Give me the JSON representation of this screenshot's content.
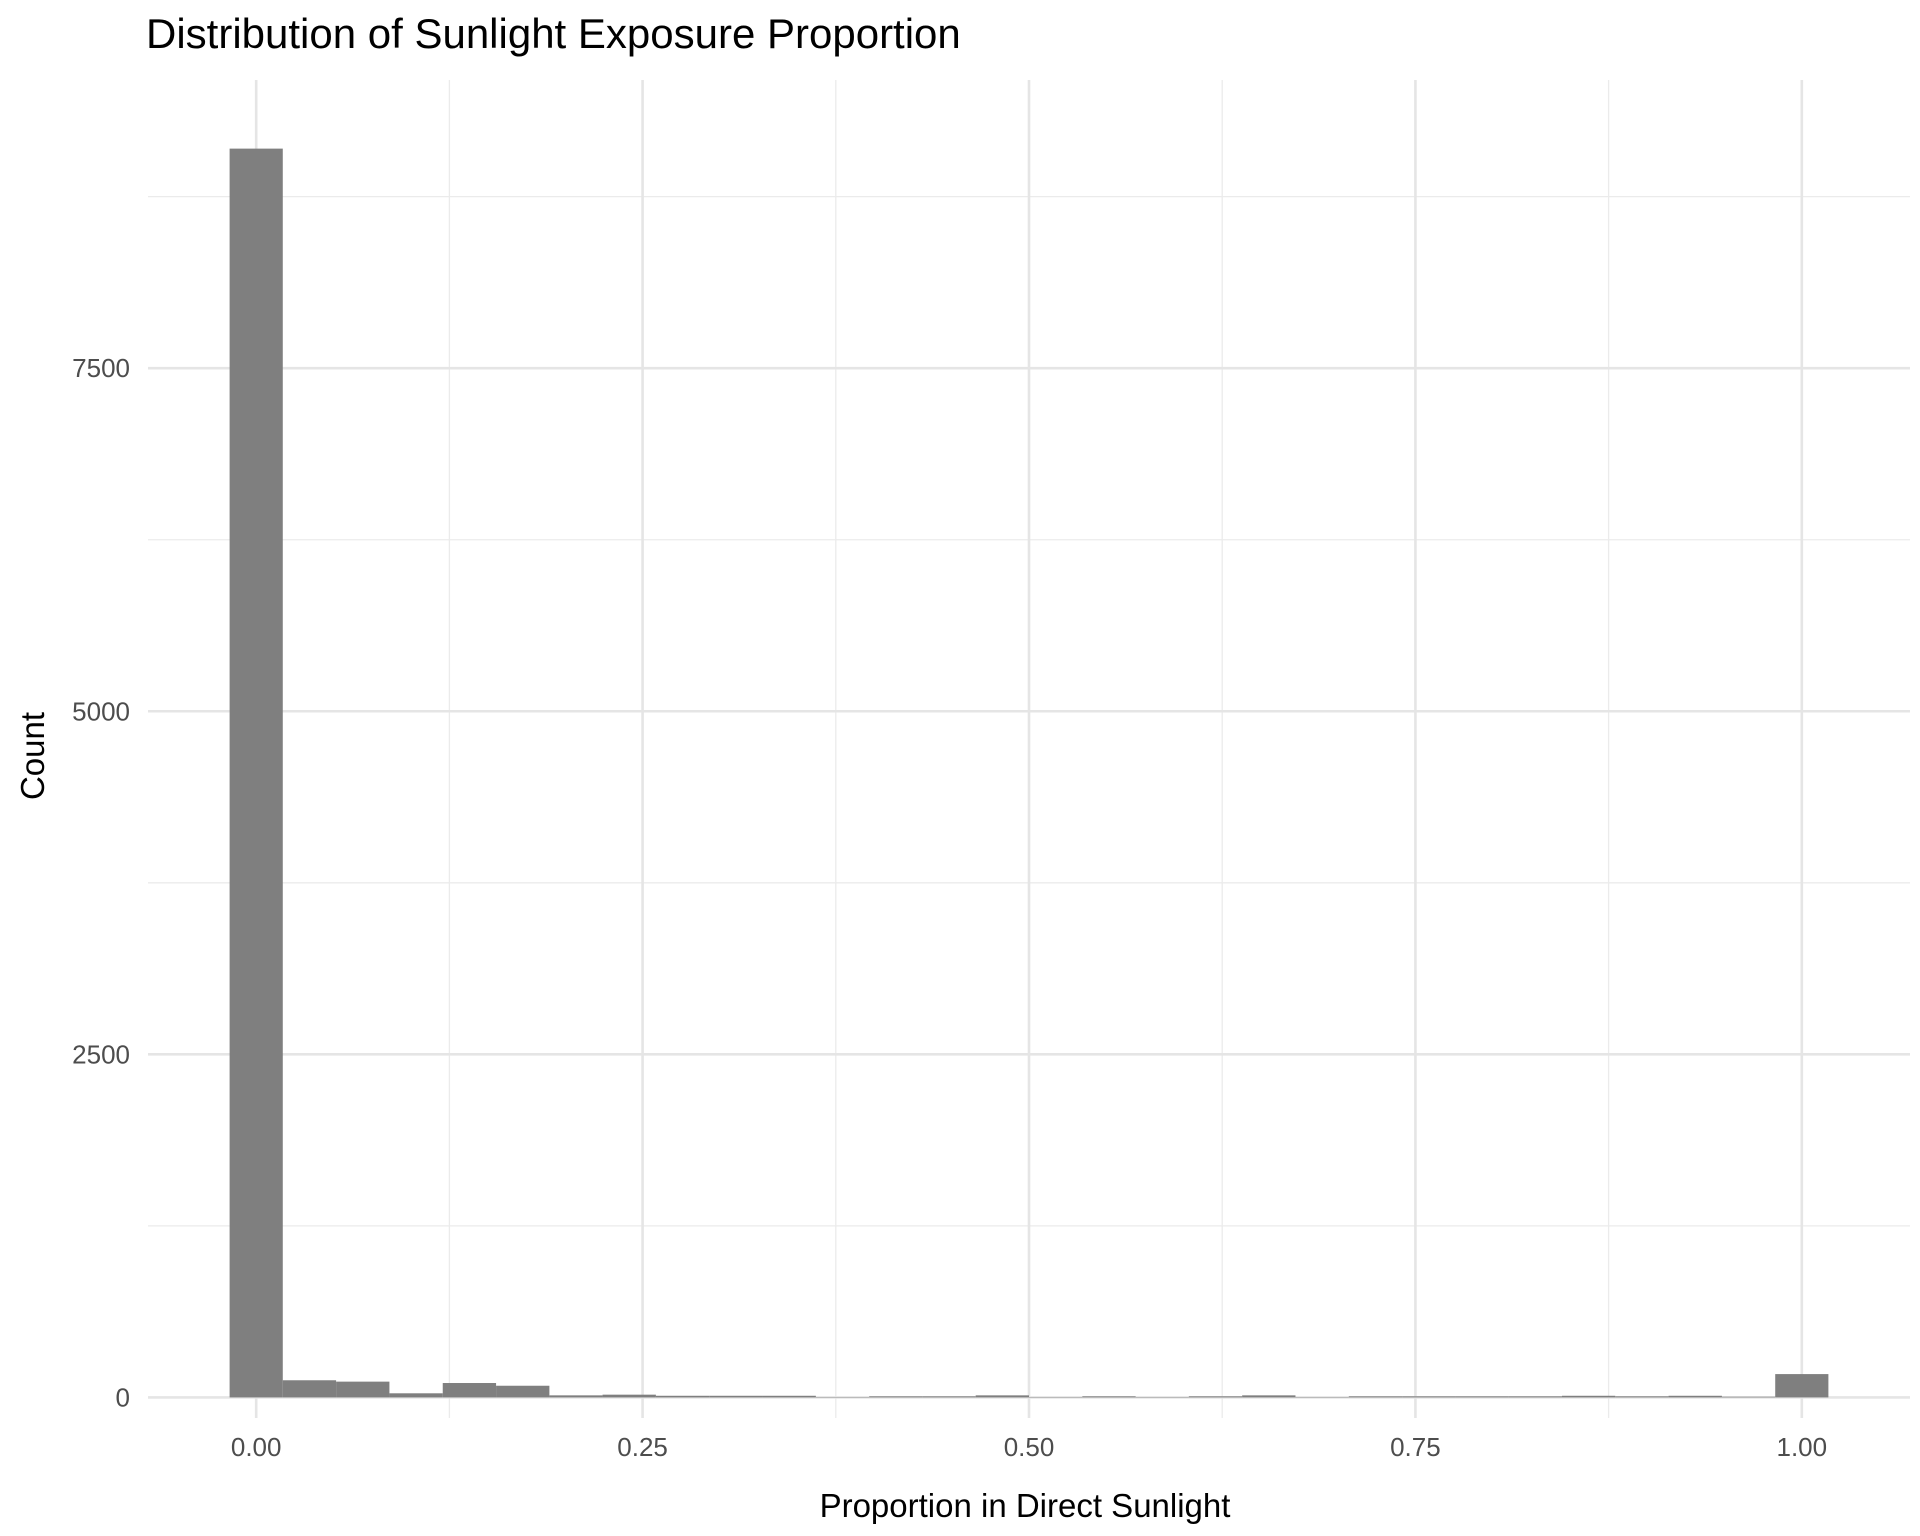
{
  "chart_data": {
    "type": "bar",
    "title": "Distribution of Sunlight Exposure Proportion",
    "xlabel": "Proportion in Direct Sunlight",
    "ylabel": "Count",
    "xlim": [
      -0.07,
      1.07
    ],
    "ylim": [
      -150,
      9600
    ],
    "x_ticks": [
      0,
      0.25,
      0.5,
      0.75,
      1.0
    ],
    "x_tick_labels": [
      "0.00",
      "0.25",
      "0.50",
      "0.75",
      "1.00"
    ],
    "y_ticks": [
      0,
      2500,
      5000,
      7500
    ],
    "y_tick_labels": [
      "0",
      "2500",
      "5000",
      "7500"
    ],
    "grid": true,
    "bar_color": "#7f7f7f",
    "bins": [
      {
        "x0": -0.0172,
        "x1": 0.0172,
        "count": 9100
      },
      {
        "x0": 0.0172,
        "x1": 0.0517,
        "count": 125
      },
      {
        "x0": 0.0517,
        "x1": 0.0862,
        "count": 115
      },
      {
        "x0": 0.0862,
        "x1": 0.1207,
        "count": 30
      },
      {
        "x0": 0.1207,
        "x1": 0.1552,
        "count": 105
      },
      {
        "x0": 0.1552,
        "x1": 0.1897,
        "count": 85
      },
      {
        "x0": 0.1897,
        "x1": 0.2241,
        "count": 15
      },
      {
        "x0": 0.2241,
        "x1": 0.2586,
        "count": 20
      },
      {
        "x0": 0.2586,
        "x1": 0.2931,
        "count": 12
      },
      {
        "x0": 0.2931,
        "x1": 0.3276,
        "count": 12
      },
      {
        "x0": 0.3276,
        "x1": 0.3621,
        "count": 12
      },
      {
        "x0": 0.3621,
        "x1": 0.3966,
        "count": 3
      },
      {
        "x0": 0.3966,
        "x1": 0.431,
        "count": 8
      },
      {
        "x0": 0.431,
        "x1": 0.4655,
        "count": 8
      },
      {
        "x0": 0.4655,
        "x1": 0.5,
        "count": 15
      },
      {
        "x0": 0.5,
        "x1": 0.5345,
        "count": 3
      },
      {
        "x0": 0.5345,
        "x1": 0.569,
        "count": 8
      },
      {
        "x0": 0.569,
        "x1": 0.6034,
        "count": 3
      },
      {
        "x0": 0.6034,
        "x1": 0.6379,
        "count": 8
      },
      {
        "x0": 0.6379,
        "x1": 0.6724,
        "count": 15
      },
      {
        "x0": 0.6724,
        "x1": 0.7069,
        "count": 3
      },
      {
        "x0": 0.7069,
        "x1": 0.7414,
        "count": 8
      },
      {
        "x0": 0.7414,
        "x1": 0.7759,
        "count": 8
      },
      {
        "x0": 0.7759,
        "x1": 0.8103,
        "count": 8
      },
      {
        "x0": 0.8103,
        "x1": 0.8448,
        "count": 8
      },
      {
        "x0": 0.8448,
        "x1": 0.8793,
        "count": 12
      },
      {
        "x0": 0.8793,
        "x1": 0.9138,
        "count": 8
      },
      {
        "x0": 0.9138,
        "x1": 0.9483,
        "count": 12
      },
      {
        "x0": 0.9483,
        "x1": 0.9828,
        "count": 5
      },
      {
        "x0": 0.9828,
        "x1": 1.0172,
        "count": 170
      }
    ]
  }
}
